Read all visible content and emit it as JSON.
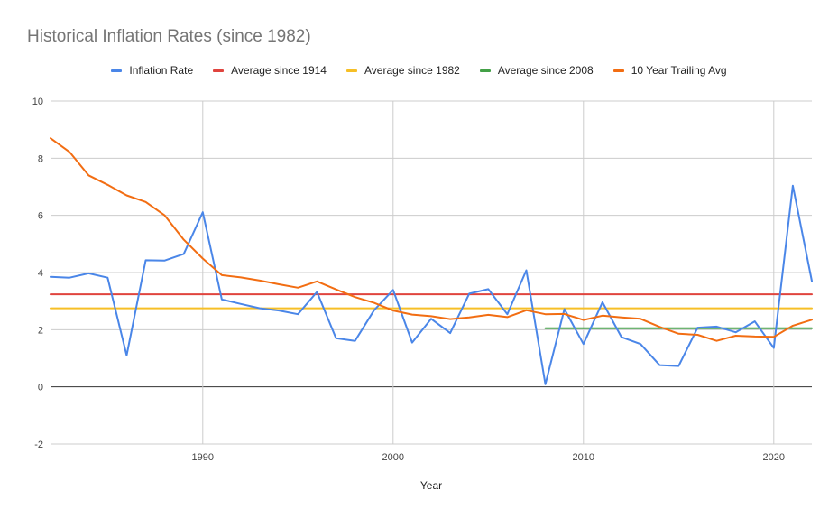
{
  "chart_data": {
    "type": "line",
    "title": "Historical Inflation Rates (since 1982)",
    "xlabel": "Year",
    "ylabel": "",
    "xlim": [
      1982,
      2022
    ],
    "ylim": [
      -2,
      10
    ],
    "x_ticks": [
      1990,
      2000,
      2010,
      2020
    ],
    "y_ticks": [
      -2,
      0,
      2,
      4,
      6,
      8,
      10
    ],
    "grid": true,
    "legend": "top",
    "series": [
      {
        "name": "Inflation Rate",
        "color": "#4a86e8",
        "points": [
          [
            1982,
            3.85
          ],
          [
            1983,
            3.82
          ],
          [
            1984,
            3.97
          ],
          [
            1985,
            3.82
          ],
          [
            1986,
            1.1
          ],
          [
            1987,
            4.43
          ],
          [
            1988,
            4.42
          ],
          [
            1989,
            4.65
          ],
          [
            1990,
            6.11
          ],
          [
            1991,
            3.06
          ],
          [
            1992,
            2.9
          ],
          [
            1993,
            2.75
          ],
          [
            1994,
            2.67
          ],
          [
            1995,
            2.54
          ],
          [
            1996,
            3.32
          ],
          [
            1997,
            1.7
          ],
          [
            1998,
            1.61
          ],
          [
            1999,
            2.68
          ],
          [
            2000,
            3.39
          ],
          [
            2001,
            1.55
          ],
          [
            2002,
            2.38
          ],
          [
            2003,
            1.88
          ],
          [
            2004,
            3.26
          ],
          [
            2005,
            3.42
          ],
          [
            2006,
            2.54
          ],
          [
            2007,
            4.08
          ],
          [
            2008,
            0.09
          ],
          [
            2009,
            2.72
          ],
          [
            2010,
            1.5
          ],
          [
            2011,
            2.96
          ],
          [
            2012,
            1.74
          ],
          [
            2013,
            1.5
          ],
          [
            2014,
            0.76
          ],
          [
            2015,
            0.73
          ],
          [
            2016,
            2.07
          ],
          [
            2017,
            2.11
          ],
          [
            2018,
            1.91
          ],
          [
            2019,
            2.29
          ],
          [
            2020,
            1.36
          ],
          [
            2021,
            7.04
          ],
          [
            2022,
            3.7
          ]
        ]
      },
      {
        "name": "Average since 1914",
        "color": "#e0443e",
        "points": [
          [
            1982,
            3.24
          ],
          [
            2022,
            3.24
          ]
        ]
      },
      {
        "name": "Average since 1982",
        "color": "#f6bf26",
        "points": [
          [
            1982,
            2.75
          ],
          [
            2022,
            2.75
          ]
        ]
      },
      {
        "name": "Average since 2008",
        "color": "#43a047",
        "points": [
          [
            2008,
            2.05
          ],
          [
            2022,
            2.05
          ]
        ]
      },
      {
        "name": "10 Year Trailing Avg",
        "color": "#f26d12",
        "points": [
          [
            1982,
            8.7
          ],
          [
            1983,
            8.22
          ],
          [
            1984,
            7.4
          ],
          [
            1985,
            7.07
          ],
          [
            1986,
            6.7
          ],
          [
            1987,
            6.47
          ],
          [
            1988,
            6.0
          ],
          [
            1989,
            5.15
          ],
          [
            1990,
            4.49
          ],
          [
            1991,
            3.91
          ],
          [
            1992,
            3.83
          ],
          [
            1993,
            3.72
          ],
          [
            1994,
            3.59
          ],
          [
            1995,
            3.47
          ],
          [
            1996,
            3.69
          ],
          [
            1997,
            3.41
          ],
          [
            1998,
            3.14
          ],
          [
            1999,
            2.94
          ],
          [
            2000,
            2.67
          ],
          [
            2001,
            2.53
          ],
          [
            2002,
            2.47
          ],
          [
            2003,
            2.37
          ],
          [
            2004,
            2.43
          ],
          [
            2005,
            2.52
          ],
          [
            2006,
            2.44
          ],
          [
            2007,
            2.68
          ],
          [
            2008,
            2.54
          ],
          [
            2009,
            2.55
          ],
          [
            2010,
            2.34
          ],
          [
            2011,
            2.49
          ],
          [
            2012,
            2.43
          ],
          [
            2013,
            2.38
          ],
          [
            2014,
            2.1
          ],
          [
            2015,
            1.86
          ],
          [
            2016,
            1.82
          ],
          [
            2017,
            1.61
          ],
          [
            2018,
            1.79
          ],
          [
            2019,
            1.76
          ],
          [
            2020,
            1.75
          ],
          [
            2021,
            2.14
          ],
          [
            2022,
            2.35
          ]
        ]
      }
    ]
  }
}
